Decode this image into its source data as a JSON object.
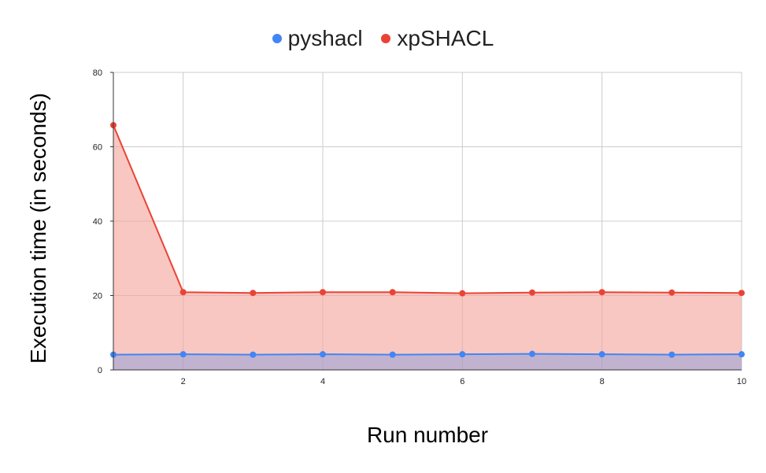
{
  "chart_data": {
    "type": "area",
    "xlabel": "Run number",
    "ylabel": "Execution time (in seconds)",
    "x": [
      1,
      2,
      3,
      4,
      5,
      6,
      7,
      8,
      9,
      10
    ],
    "xlim": [
      1,
      10
    ],
    "ylim": [
      0,
      80
    ],
    "x_ticks": [
      "2",
      "4",
      "6",
      "8",
      "10"
    ],
    "y_ticks": [
      "0",
      "20",
      "40",
      "60",
      "80"
    ],
    "grid": true,
    "legend_position": "top",
    "series": [
      {
        "name": "pyshacl",
        "color": "#4285f4",
        "fill": "#4285f4",
        "values": [
          4.1,
          4.2,
          4.1,
          4.2,
          4.1,
          4.2,
          4.3,
          4.2,
          4.1,
          4.2
        ]
      },
      {
        "name": "xpSHACL",
        "color": "#ea4335",
        "fill": "#f4a59b",
        "values": [
          65.8,
          20.9,
          20.7,
          20.9,
          20.9,
          20.6,
          20.8,
          20.9,
          20.8,
          20.7
        ]
      }
    ]
  }
}
